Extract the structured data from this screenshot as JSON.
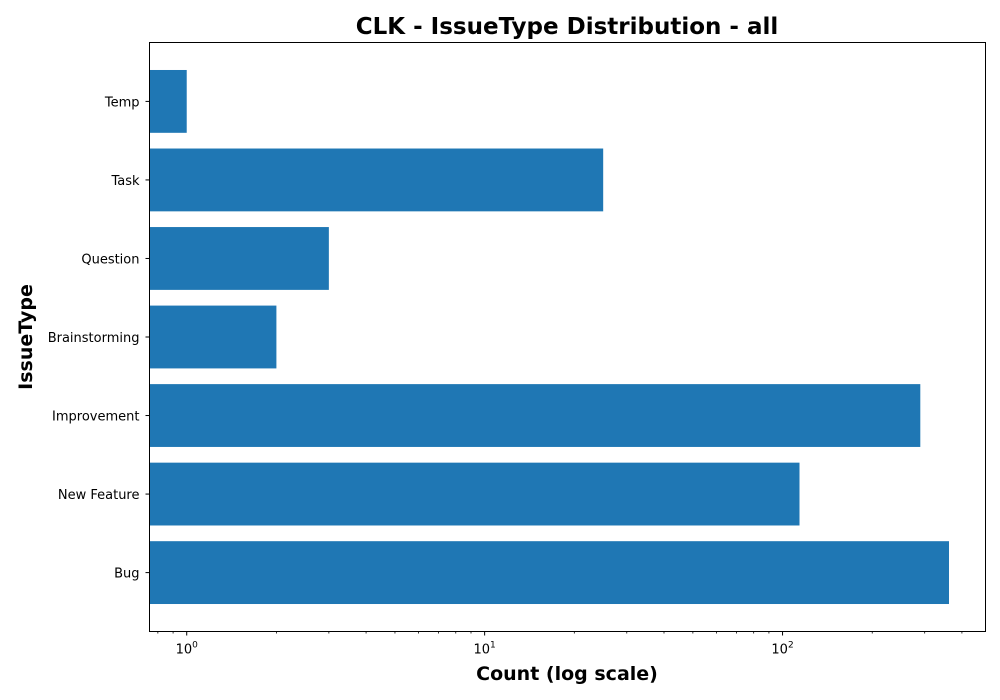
{
  "chart_data": {
    "type": "bar",
    "orientation": "horizontal",
    "title": "CLK - IssueType Distribution - all",
    "xlabel": "Count (log scale)",
    "ylabel": "IssueType",
    "x_scale": "log",
    "xlim": [
      0.75,
      480
    ],
    "x_ticks": [
      {
        "value": 1,
        "base": "10",
        "exp": "0"
      },
      {
        "value": 10,
        "base": "10",
        "exp": "1"
      },
      {
        "value": 100,
        "base": "10",
        "exp": "2"
      }
    ],
    "categories": [
      "Temp",
      "Task",
      "Question",
      "Brainstorming",
      "Improvement",
      "New Feature",
      "Bug"
    ],
    "values": [
      1,
      25,
      3,
      2,
      290,
      114,
      362
    ],
    "bar_color": "#1f77b4",
    "grid": false,
    "legend": "none"
  }
}
